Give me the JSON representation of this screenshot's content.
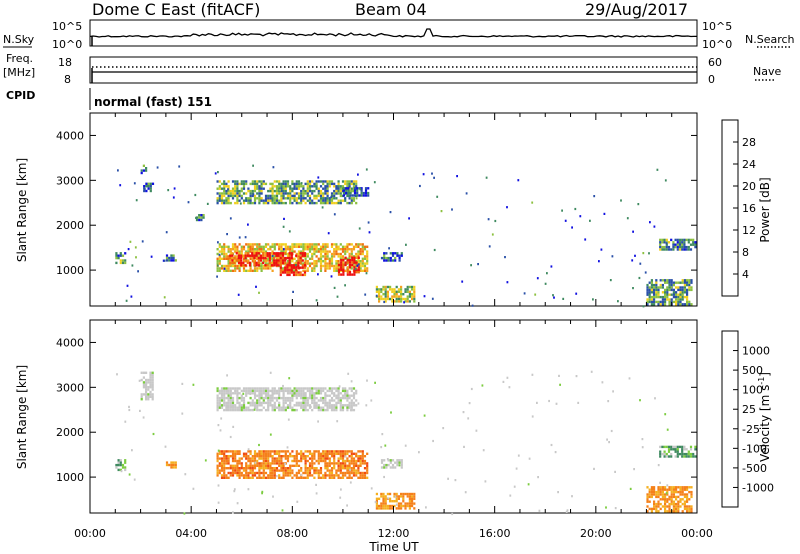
{
  "header": {
    "station": "Dome C East (fitACF)",
    "beam": "Beam 04",
    "date": "29/Aug/2017"
  },
  "status_panels": {
    "nsky_label": "N.Sky",
    "nsearch_label": "N.Search",
    "freq_label_top": "Freq.",
    "freq_label_unit": "[MHz]",
    "nave_label": "Nave",
    "cpid_label": "CPID",
    "cpid_value": "normal (fast) 151",
    "noise_ticks": [
      "10^5",
      "10^0"
    ],
    "freq_ticks": [
      "18",
      "8"
    ],
    "nave_ticks": [
      "60",
      "0"
    ]
  },
  "colors": {
    "power": [
      "#1010e0",
      "#2a50a8",
      "#3f8a60",
      "#8cc040",
      "#f0d020",
      "#f5a020",
      "#f07010",
      "#ee1010"
    ],
    "velocity": [
      "#ee1010",
      "#f04a10",
      "#f5801a",
      "#f5b020",
      "#c8c8c8",
      "#7ccc40",
      "#3f8a60",
      "#2a50a8",
      "#1010e0"
    ]
  },
  "chart_data": [
    {
      "type": "heatmap",
      "name": "power",
      "ylabel": "Slant Range [km]",
      "ylim": [
        200,
        4500
      ],
      "yticks": [
        1000,
        2000,
        3000,
        4000
      ],
      "xlim_hours": [
        0,
        24
      ],
      "colorbar_label": "Power [dB]",
      "colorbar_ticks": [
        4,
        8,
        12,
        16,
        20,
        24,
        28
      ],
      "colorbar_range": [
        0,
        32
      ],
      "regions": [
        {
          "t": [
            1.0,
            1.4
          ],
          "r": [
            1150,
            1400
          ],
          "level": 0.3
        },
        {
          "t": [
            2.0,
            2.2
          ],
          "r": [
            3150,
            3350
          ],
          "level": 0.2
        },
        {
          "t": [
            2.1,
            2.5
          ],
          "r": [
            2750,
            2950
          ],
          "level": 0.25
        },
        {
          "t": [
            3.0,
            3.4
          ],
          "r": [
            1200,
            1350
          ],
          "level": 0.25
        },
        {
          "t": [
            4.1,
            4.5
          ],
          "r": [
            2100,
            2250
          ],
          "level": 0.2
        },
        {
          "t": [
            5.0,
            11.0
          ],
          "r": [
            1000,
            1600
          ],
          "level": 0.6
        },
        {
          "t": [
            5.5,
            7.5
          ],
          "r": [
            1100,
            1400
          ],
          "level": 0.9
        },
        {
          "t": [
            7.5,
            8.5
          ],
          "r": [
            900,
            1400
          ],
          "level": 0.95
        },
        {
          "t": [
            9.8,
            10.6
          ],
          "r": [
            900,
            1300
          ],
          "level": 0.95
        },
        {
          "t": [
            5.0,
            10.5
          ],
          "r": [
            2500,
            3000
          ],
          "level": 0.35
        },
        {
          "t": [
            10.0,
            11.0
          ],
          "r": [
            2650,
            2850
          ],
          "level": 0.15
        },
        {
          "t": [
            11.5,
            12.3
          ],
          "r": [
            1200,
            1400
          ],
          "level": 0.2
        },
        {
          "t": [
            11.3,
            12.8
          ],
          "r": [
            300,
            650
          ],
          "level": 0.5
        },
        {
          "t": [
            22.0,
            23.8
          ],
          "r": [
            250,
            800
          ],
          "level": 0.35
        },
        {
          "t": [
            22.5,
            23.9
          ],
          "r": [
            1450,
            1700
          ],
          "level": 0.3
        }
      ]
    },
    {
      "type": "heatmap",
      "name": "velocity",
      "ylabel": "Slant Range [km]",
      "ylim": [
        200,
        4500
      ],
      "yticks": [
        1000,
        2000,
        3000,
        4000
      ],
      "xlim_hours": [
        0,
        24
      ],
      "xticks": [
        "00:00",
        "04:00",
        "08:00",
        "12:00",
        "16:00",
        "20:00",
        "00:00"
      ],
      "xlabel": "Time UT",
      "colorbar_label": "Velocity [m s^-1]",
      "colorbar_ticks": [
        1000,
        500,
        100,
        25,
        -25,
        -100,
        -500,
        -1000
      ],
      "regions": [
        {
          "t": [
            1.0,
            1.4
          ],
          "r": [
            1150,
            1400
          ],
          "vel": "slow_toward"
        },
        {
          "t": [
            2.0,
            2.5
          ],
          "r": [
            2750,
            3350
          ],
          "vel": "ground"
        },
        {
          "t": [
            3.0,
            3.4
          ],
          "r": [
            1200,
            1350
          ],
          "vel": "away"
        },
        {
          "t": [
            5.0,
            11.0
          ],
          "r": [
            1000,
            1600
          ],
          "vel": "away_fast"
        },
        {
          "t": [
            5.0,
            10.5
          ],
          "r": [
            2500,
            3000
          ],
          "vel": "ground"
        },
        {
          "t": [
            11.5,
            12.3
          ],
          "r": [
            1200,
            1400
          ],
          "vel": "ground"
        },
        {
          "t": [
            11.3,
            12.8
          ],
          "r": [
            300,
            650
          ],
          "vel": "away"
        },
        {
          "t": [
            22.0,
            23.8
          ],
          "r": [
            250,
            800
          ],
          "vel": "away"
        },
        {
          "t": [
            22.5,
            23.9
          ],
          "r": [
            1450,
            1700
          ],
          "vel": "slow_toward"
        }
      ]
    }
  ]
}
